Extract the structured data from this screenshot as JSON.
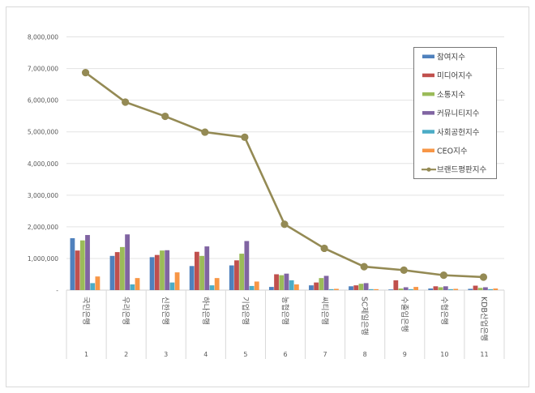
{
  "chart_data": {
    "type": "bar",
    "title": "",
    "xlabel": "",
    "ylabel": "",
    "ylim": [
      0,
      8000000
    ],
    "yticks": [
      "-",
      "1,000,000",
      "2,000,000",
      "3,000,000",
      "4,000,000",
      "5,000,000",
      "6,000,000",
      "7,000,000",
      "8,000,000"
    ],
    "grid": true,
    "legend_position": "upper right (inside plot)",
    "categories": [
      "국민은행",
      "우리은행",
      "신한은행",
      "하나은행",
      "기업은행",
      "농협은행",
      "씨티은행",
      "SC제일은행",
      "수출입은행",
      "수협은행",
      "KDB산업은행"
    ],
    "ranks": [
      "1",
      "2",
      "3",
      "4",
      "5",
      "6",
      "7",
      "8",
      "9",
      "10",
      "11"
    ],
    "series": [
      {
        "name": "참여지수",
        "type": "bar",
        "color": "#4F81BD",
        "values": [
          1640000,
          1080000,
          1040000,
          760000,
          780000,
          100000,
          150000,
          120000,
          20000,
          50000,
          40000
        ]
      },
      {
        "name": "미디어지수",
        "type": "bar",
        "color": "#C0504D",
        "values": [
          1250000,
          1200000,
          1110000,
          1210000,
          940000,
          500000,
          240000,
          150000,
          310000,
          120000,
          140000
        ]
      },
      {
        "name": "소통지수",
        "type": "bar",
        "color": "#9BBB59",
        "values": [
          1570000,
          1360000,
          1250000,
          1080000,
          1150000,
          470000,
          380000,
          200000,
          50000,
          90000,
          70000
        ]
      },
      {
        "name": "커뮤니티지수",
        "type": "bar",
        "color": "#8064A2",
        "values": [
          1740000,
          1760000,
          1260000,
          1380000,
          1550000,
          520000,
          450000,
          220000,
          90000,
          120000,
          90000
        ]
      },
      {
        "name": "사회공헌지수",
        "type": "bar",
        "color": "#4BACC6",
        "values": [
          220000,
          180000,
          240000,
          150000,
          130000,
          310000,
          30000,
          30000,
          30000,
          30000,
          30000
        ]
      },
      {
        "name": "CEO지수",
        "type": "bar",
        "color": "#F79646",
        "values": [
          430000,
          380000,
          560000,
          380000,
          270000,
          180000,
          40000,
          30000,
          100000,
          40000,
          50000
        ]
      },
      {
        "name": "브랜드평판지수",
        "type": "line",
        "color": "#948A54",
        "values": [
          6870000,
          5940000,
          5490000,
          4990000,
          4830000,
          2080000,
          1320000,
          740000,
          630000,
          470000,
          410000
        ]
      }
    ]
  }
}
